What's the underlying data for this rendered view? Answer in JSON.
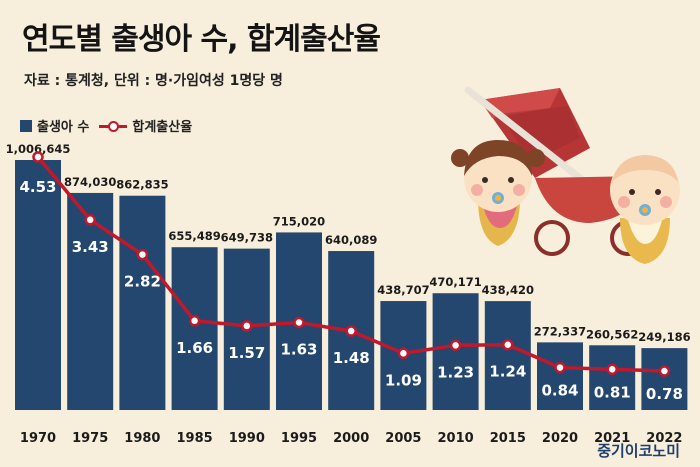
{
  "header": {
    "title": "연도별 출생아 수, 합계출산율",
    "source": "자료 : 통계청, 단위 : 명·가임여성 1명당 명"
  },
  "legend": {
    "bar_label": "출생아 수",
    "line_label": "합계출산율"
  },
  "brand": "중기이코노미",
  "colors": {
    "bar": "#24476f",
    "line": "#c2182b",
    "background": "#f7efdc"
  },
  "chart_data": {
    "type": "bar",
    "title": "연도별 출생아 수, 합계출산율",
    "categories": [
      "1970",
      "1975",
      "1980",
      "1985",
      "1990",
      "1995",
      "2000",
      "2005",
      "2010",
      "2015",
      "2020",
      "2021",
      "2022"
    ],
    "series": [
      {
        "name": "출생아 수",
        "type": "bar",
        "values": [
          1006645,
          874030,
          862835,
          655489,
          649738,
          715020,
          640089,
          438707,
          470171,
          438420,
          272337,
          260562,
          249186
        ],
        "labels": [
          "1,006,645",
          "874,030",
          "862,835",
          "655,489",
          "649,738",
          "715,020",
          "640,089",
          "438,707",
          "470,171",
          "438,420",
          "272,337",
          "260,562",
          "249,186"
        ]
      },
      {
        "name": "합계출산율",
        "type": "line",
        "values": [
          4.53,
          3.43,
          2.82,
          1.66,
          1.57,
          1.63,
          1.48,
          1.09,
          1.23,
          1.24,
          0.84,
          0.81,
          0.78
        ],
        "labels": [
          "4.53",
          "3.43",
          "2.82",
          "1.66",
          "1.57",
          "1.63",
          "1.48",
          "1.09",
          "1.23",
          "1.24",
          "0.84",
          "0.81",
          "0.78"
        ]
      }
    ],
    "xlabel": "",
    "ylabel": "",
    "grid": false,
    "legend_position": "top-left"
  }
}
